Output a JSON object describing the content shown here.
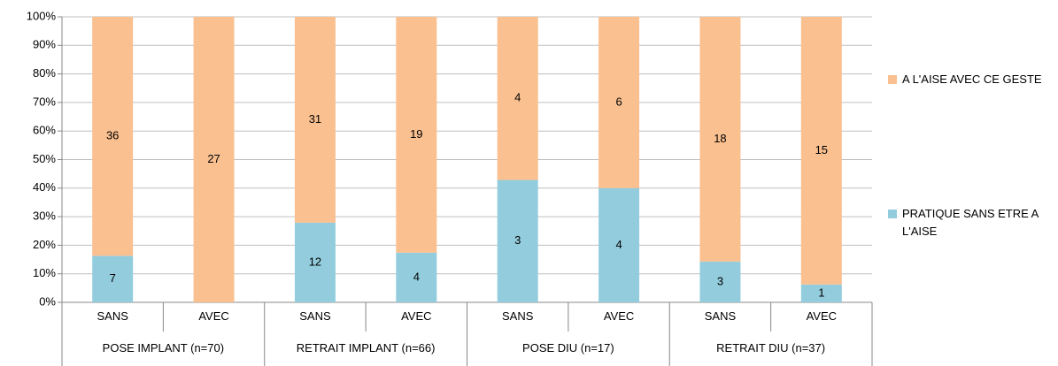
{
  "chart_data": {
    "type": "bar",
    "stacking": "percent",
    "groups": [
      "POSE IMPLANT (n=70)",
      "RETRAIT IMPLANT (n=66)",
      "POSE DIU (n=17)",
      "RETRAIT DIU (n=37)"
    ],
    "categories": [
      "SANS",
      "AVEC",
      "SANS",
      "AVEC",
      "SANS",
      "AVEC",
      "SANS",
      "AVEC"
    ],
    "series": [
      {
        "name": "PRATIQUE SANS ETRE A L'AISE",
        "color": "#93cddd",
        "values": [
          7,
          null,
          12,
          4,
          3,
          4,
          3,
          1
        ]
      },
      {
        "name": "A L'AISE AVEC CE GESTE",
        "color": "#fac090",
        "values": [
          36,
          27,
          31,
          19,
          4,
          6,
          18,
          15
        ]
      }
    ],
    "ylim": [
      0,
      100
    ],
    "yticks": [
      {
        "value": 0,
        "label": "0%"
      },
      {
        "value": 10,
        "label": "10%"
      },
      {
        "value": 20,
        "label": "20%"
      },
      {
        "value": 30,
        "label": "30%"
      },
      {
        "value": 40,
        "label": "40%"
      },
      {
        "value": 50,
        "label": "50%"
      },
      {
        "value": 60,
        "label": "60%"
      },
      {
        "value": 70,
        "label": "70%"
      },
      {
        "value": 80,
        "label": "80%"
      },
      {
        "value": 90,
        "label": "90%"
      },
      {
        "value": 100,
        "label": "100%"
      }
    ],
    "grid": true
  }
}
